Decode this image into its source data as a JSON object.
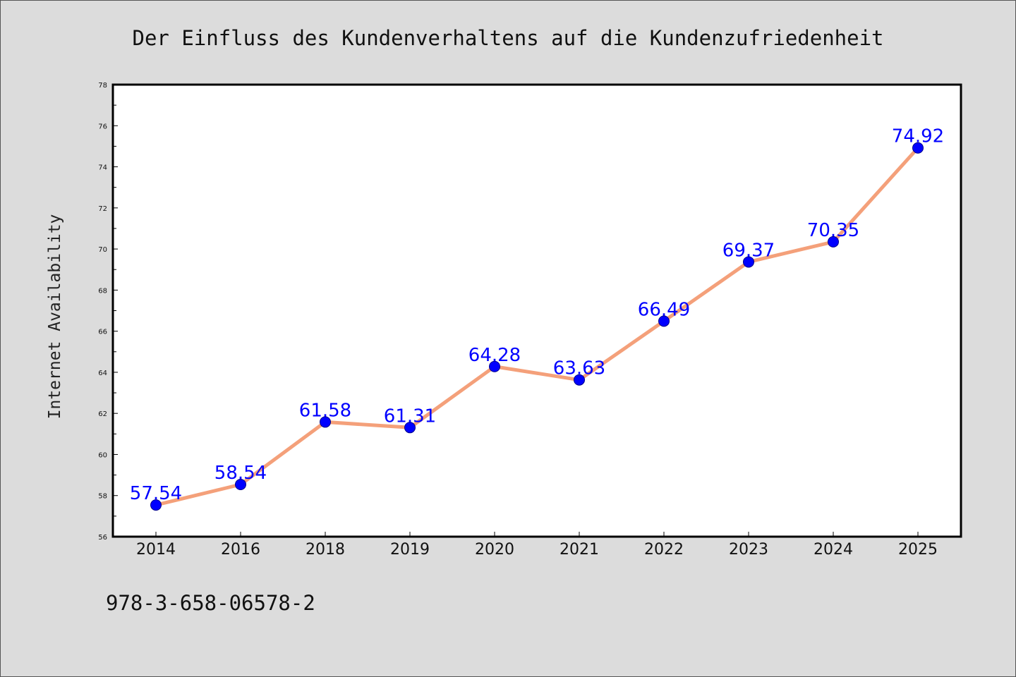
{
  "chart_data": {
    "type": "line",
    "title": "Der Einfluss des Kundenverhaltens auf die Kundenzufriedenheit",
    "xlabel": "",
    "ylabel": "Internet Availability",
    "categories": [
      "2014",
      "2016",
      "2018",
      "2019",
      "2020",
      "2021",
      "2022",
      "2023",
      "2024",
      "2025"
    ],
    "series": [
      {
        "values": [
          57.54,
          58.54,
          61.58,
          61.31,
          64.28,
          63.63,
          66.49,
          69.37,
          70.35,
          74.92
        ],
        "labels": [
          "57.54",
          "58.54",
          "61.58",
          "61.31",
          "64.28",
          "63.63",
          "66.49",
          "69.37",
          "70.35",
          "74.92"
        ],
        "line_color": "#f4a07a",
        "marker_color": "#0000ff"
      }
    ],
    "ylim": [
      56,
      78
    ],
    "yticks": [
      "56",
      "58",
      "60",
      "62",
      "64",
      "66",
      "68",
      "70",
      "72",
      "74",
      "76",
      "78"
    ],
    "grid": false,
    "footer": "978-3-658-06578-2",
    "colors": {
      "background": "#dcdcdc",
      "plot_area": "#ffffff",
      "label": "#0000ff"
    }
  }
}
